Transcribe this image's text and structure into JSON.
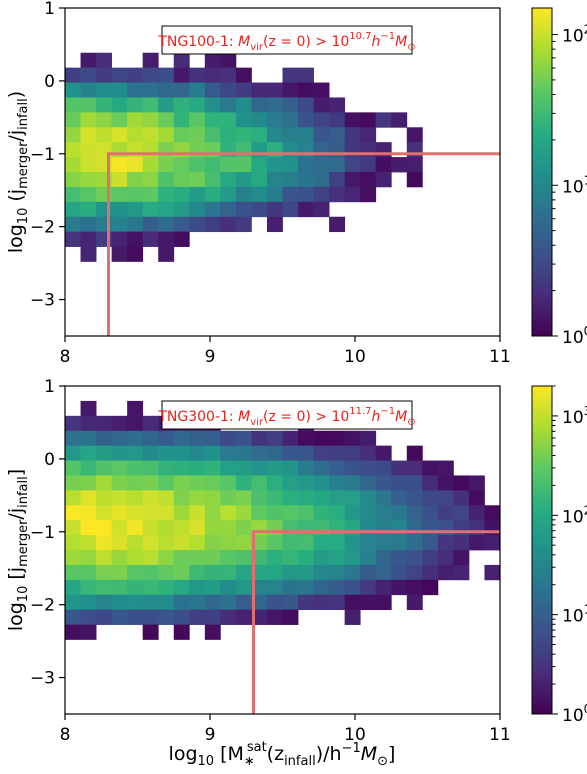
{
  "chart_data": [
    {
      "type": "heatmap",
      "annotation": "TNG100-1: M_vir(z=0) > 10^10.7 h^-1 M_⊙",
      "annotation_parts": {
        "prefix": "TNG100-1: ",
        "mvir": "M",
        "mvir_sub": "vir",
        "mid": "(z = 0) > 10",
        "exp": "10.7",
        "unit": "h",
        "unit_exp": "−1",
        "msun": "M",
        "msun_sub": "⊙"
      },
      "xlabel": "",
      "ylabel": "log10 (j_merger / j_infall)",
      "ylabel_parts": {
        "log": "log",
        "log_sub": "10",
        "open": " (j",
        "num_sub": "merger",
        "slash": "/j",
        "den_sub": "infall",
        "close": ")"
      },
      "xlim": [
        8,
        11
      ],
      "ylim": [
        -3.5,
        1
      ],
      "xticks": [
        "8",
        "9",
        "10",
        "11"
      ],
      "yticks": [
        "1",
        "0",
        "−1",
        "−2",
        "−3"
      ],
      "colorbar": {
        "scale": "log",
        "range": [
          1,
          150
        ],
        "ticks": [
          {
            "base": "10",
            "exp": "0"
          },
          {
            "base": "10",
            "exp": "1"
          },
          {
            "base": "10",
            "exp": "2"
          }
        ]
      },
      "selection_box": {
        "x_min": 8.3,
        "y_min": -1.0,
        "color": "#e07070"
      },
      "colormap": "viridis",
      "peak_x": 8.1,
      "peak_y": -1.0,
      "width_x": 1.5,
      "width_y": 1.1,
      "peak_log_count": 2.05
    },
    {
      "type": "heatmap",
      "annotation": "TNG300-1: M_vir(z=0) > 10^11.7 h^-1 M_⊙",
      "annotation_parts": {
        "prefix": "TNG300-1: ",
        "mvir": "M",
        "mvir_sub": "vir",
        "mid": "(z = 0) > 10",
        "exp": "11.7",
        "unit": "h",
        "unit_exp": "−1",
        "msun": "M",
        "msun_sub": "⊙"
      },
      "xlabel": "log10 [M*^sat (z_infall) / h^-1 M_⊙]",
      "xlabel_parts": {
        "log": "log",
        "log_sub": "10",
        "open": " [M",
        "star": "∗",
        "sat": "sat",
        "mid": "(z",
        "infall": "infall",
        "rest": ")/h",
        "unit_exp": "−1",
        "msun": "M",
        "msun_sub": "⊙",
        "close": "]"
      },
      "ylabel": "log10 [j_merger / j_infall]",
      "ylabel_parts": {
        "log": "log",
        "log_sub": "10",
        "open": " [j",
        "num_sub": "merger",
        "slash": "/j",
        "den_sub": "infall",
        "close": "]"
      },
      "xlim": [
        8,
        11
      ],
      "ylim": [
        -3.5,
        1
      ],
      "xticks": [
        "8",
        "9",
        "10",
        "11"
      ],
      "yticks": [
        "1",
        "0",
        "−1",
        "−2",
        "−3"
      ],
      "colorbar": {
        "scale": "log",
        "range": [
          1,
          2000
        ],
        "ticks": [
          {
            "base": "10",
            "exp": "0"
          },
          {
            "base": "10",
            "exp": "1"
          },
          {
            "base": "10",
            "exp": "2"
          },
          {
            "base": "10",
            "exp": "3"
          }
        ]
      },
      "selection_box": {
        "x_min": 9.3,
        "y_min": -1.0,
        "color": "#e07070"
      },
      "colormap": "viridis",
      "peak_x": 8.15,
      "peak_y": -0.9,
      "width_x": 2.0,
      "width_y": 1.3,
      "peak_log_count": 3.2
    }
  ]
}
